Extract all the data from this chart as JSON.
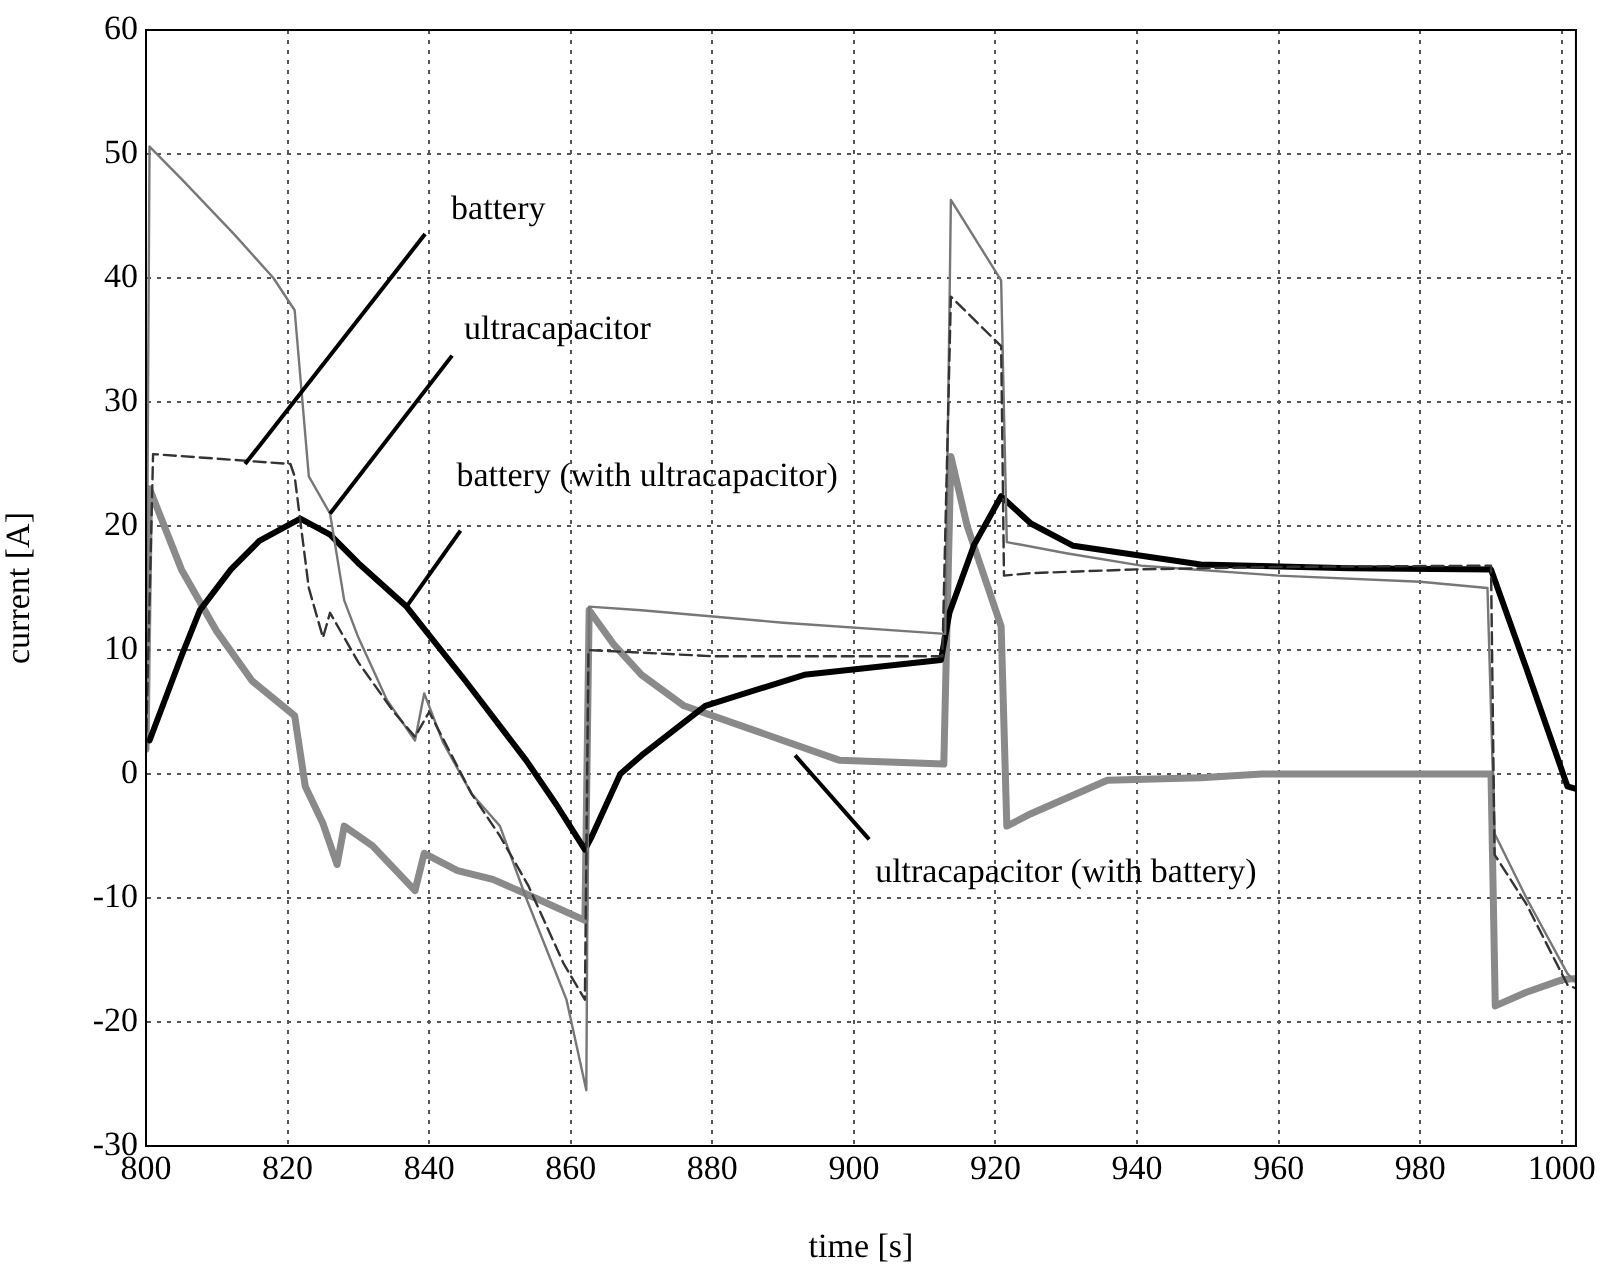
{
  "chart_data": {
    "type": "line",
    "xlabel": "time [s]",
    "ylabel": "current [A]",
    "xlim": [
      800,
      1002
    ],
    "xticks": [
      800,
      820,
      840,
      860,
      880,
      900,
      920,
      940,
      960,
      980,
      1000
    ],
    "ylim": [
      -30,
      60
    ],
    "yticks": [
      -30,
      -20,
      -10,
      0,
      10,
      20,
      30,
      40,
      50,
      60
    ],
    "grid": true,
    "legend": false,
    "marker": "none",
    "series": [
      {
        "color": "#333333",
        "line_style": "dashed",
        "x": [
          800,
          801,
          820.4,
          821,
          823,
          825,
          826,
          830,
          835,
          838,
          840,
          846,
          850,
          854,
          859,
          862,
          862.5,
          880,
          912.5,
          913.7,
          920.8,
          921.2,
          925,
          940,
          960,
          990,
          990.5,
          995,
          1000.8,
          1002
        ],
        "values": [
          2,
          25.8,
          25,
          24,
          15,
          11,
          13,
          9,
          5,
          3,
          5,
          -1.6,
          -5,
          -9,
          -15.3,
          -18.2,
          10,
          9.5,
          9.5,
          38.5,
          34.5,
          16,
          16.2,
          16.5,
          16.7,
          16.8,
          -6.5,
          -10.5,
          -17,
          -17.3
        ]
      },
      {
        "color": "#777777",
        "line_style": "solid",
        "x": [
          800,
          800.5,
          805,
          812.5,
          818,
          821,
          823,
          826,
          828,
          830,
          834,
          838,
          839.3,
          842,
          846,
          850,
          853.7,
          859.4,
          862.2,
          862.6,
          870,
          890,
          912.9,
          913.7,
          920.8,
          921.6,
          930,
          940.6,
          960,
          980,
          989.5,
          990.5,
          995,
          1000.8,
          1002
        ],
        "values": [
          3,
          50.6,
          48,
          43.5,
          40,
          37.4,
          24,
          21,
          14,
          11,
          6,
          2.7,
          6.5,
          2.5,
          -1.6,
          -4.2,
          -10,
          -18.2,
          -25.5,
          13.5,
          13.2,
          12.2,
          11.3,
          46.3,
          39.8,
          18.7,
          17.8,
          16.8,
          16,
          15.5,
          15,
          -4.8,
          -10,
          -16.1,
          -16.8
        ]
      },
      {
        "color": "#000000",
        "line_style": "solid",
        "x": [
          800.5,
          805,
          807.6,
          812,
          816,
          821.8,
          826,
          830,
          836.8,
          845,
          853.7,
          858,
          862,
          863,
          867,
          870,
          879,
          893,
          912.3,
          913.5,
          917,
          920.8,
          925,
          931,
          949,
          970,
          990,
          995,
          1000.8,
          1002
        ],
        "values": [
          2.7,
          9.5,
          13.2,
          16.5,
          18.8,
          20.6,
          19.3,
          17,
          13.5,
          7.6,
          1.1,
          -2.5,
          -6.1,
          -5,
          0,
          1.5,
          5.5,
          8,
          9.2,
          13,
          18.5,
          22.4,
          20.2,
          18.4,
          16.9,
          16.6,
          16.5,
          8.5,
          -1,
          -1.2
        ]
      },
      {
        "color": "#8a8a8a",
        "line_style": "solid",
        "x": [
          800,
          800.5,
          805,
          810,
          815,
          821,
          822.5,
          825,
          827,
          828,
          832,
          838,
          839.3,
          844,
          849,
          855,
          862,
          862.6,
          866,
          870,
          876,
          884,
          898,
          912.7,
          913.7,
          916,
          920.8,
          921.6,
          925,
          935.8,
          949,
          957.6,
          990,
          990.6,
          995,
          1000,
          1002
        ],
        "values": [
          2,
          23,
          16.5,
          11.5,
          7.5,
          4.7,
          -1,
          -4,
          -7.3,
          -4.2,
          -5.8,
          -9.4,
          -6.4,
          -7.8,
          -8.5,
          -10,
          -11.8,
          13.2,
          10.5,
          8,
          5.5,
          3.9,
          1.1,
          0.8,
          25.6,
          20,
          11.9,
          -4.2,
          -3.2,
          -0.5,
          -0.3,
          0,
          0,
          -18.7,
          -17.6,
          -16.6,
          -16.5
        ]
      }
    ],
    "annotations": [
      {
        "text": "battery",
        "x": 814,
        "y": 25
      },
      {
        "text": "ultracapacitor",
        "x": 826,
        "y": 21
      },
      {
        "text": "battery (with ultracapacitor)",
        "x": 836.8,
        "y": 13.5
      },
      {
        "text": "ultracapacitor (with battery)",
        "x": 891.7,
        "y": 1.5
      }
    ]
  }
}
